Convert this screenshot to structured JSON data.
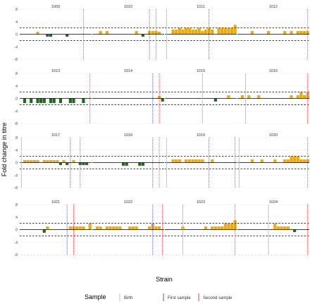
{
  "chart_data": {
    "type": "bar",
    "layout": "facet-grid 4x4, shared x and y axes",
    "xlabel": "Strain",
    "ylabel": "Fold change in titre",
    "ylim": [
      -8,
      8
    ],
    "yticks": [
      -8,
      -4,
      0,
      4,
      8
    ],
    "reference_lines": [
      {
        "y": 2,
        "style": "dashed",
        "color": "#000000"
      },
      {
        "y": -2,
        "style": "dashed",
        "color": "#000000"
      },
      {
        "y": 0,
        "style": "solid",
        "color": "#000000"
      }
    ],
    "positive_color": "#f2a900",
    "negative_color": "#1e6b1e",
    "legend": {
      "title": "Sample",
      "placement": "bottom",
      "entries": [
        {
          "label": "Birth",
          "color": "#bdbdbd"
        },
        {
          "label": "First sample",
          "color": "#4a56d8"
        },
        {
          "label": "Second sample",
          "color": "#e0474c"
        }
      ]
    },
    "n_strains": 22,
    "panels": [
      {
        "id": "1009",
        "values": [
          0,
          0,
          0,
          0,
          0,
          0.8,
          0,
          0,
          -0.8,
          -0.8,
          0,
          0,
          0,
          0,
          -0.8,
          0,
          0,
          0,
          0,
          0,
          0,
          0
        ],
        "birth": null,
        "first": null,
        "second": 19
      },
      {
        "id": "1010",
        "values": [
          0,
          0,
          1,
          0,
          1,
          0,
          0,
          0,
          0,
          0,
          0,
          0,
          0,
          1,
          0,
          -0.8,
          0,
          1,
          1,
          1,
          0.8,
          0
        ],
        "birth": null,
        "first": 17,
        "second": 19
      },
      {
        "id": "1011",
        "values": [
          0,
          0,
          1.5,
          1.5,
          2,
          1.5,
          2,
          2,
          1.5,
          1.5,
          2,
          1,
          1.5,
          2,
          1.5,
          0,
          2,
          2,
          2,
          2,
          2,
          3
        ],
        "birth": 0,
        "first": 13,
        "second": null
      },
      {
        "id": "1012",
        "values": [
          0,
          0,
          0,
          0,
          1,
          0,
          0,
          0,
          0,
          1,
          0,
          0,
          0,
          0,
          1,
          0,
          1,
          0,
          1,
          1,
          1,
          1
        ],
        "birth": null,
        "first": null,
        "second": 21
      },
      {
        "id": "1013",
        "values": [
          0,
          -1.5,
          0,
          -1.5,
          0,
          -1.5,
          -1.5,
          -1.5,
          0,
          -1.5,
          -1.5,
          0,
          -1.5,
          0,
          0,
          -1.5,
          -1.5,
          0,
          0,
          -1.5,
          0,
          0
        ],
        "birth": null,
        "first": null,
        "second": 21
      },
      {
        "id": "1014",
        "values": [
          0,
          0,
          0,
          0,
          0,
          0,
          0,
          0,
          0,
          0,
          0,
          0,
          0,
          0,
          0,
          0,
          0,
          0,
          0,
          0,
          0.8,
          -1
        ],
        "birth": null,
        "first": 18,
        "second": 20
      },
      {
        "id": "1015",
        "values": [
          0,
          0,
          0,
          0,
          0,
          0,
          0,
          0,
          0,
          0,
          0,
          0,
          0,
          0,
          0,
          -1,
          0,
          0,
          0,
          1,
          0,
          0
        ],
        "birth": 11,
        "first": null,
        "second": null
      },
      {
        "id": "1016",
        "values": [
          0,
          1,
          0,
          1,
          0,
          0,
          1,
          0,
          0,
          0,
          0,
          0,
          0,
          0,
          0,
          0,
          1,
          0,
          1,
          2,
          1,
          2
        ],
        "birth": 2,
        "first": null,
        "second": 21
      },
      {
        "id": "1017",
        "values": [
          0,
          0.8,
          0.8,
          0.8,
          0.8,
          0.8,
          0,
          0.8,
          0.8,
          0.8,
          0.8,
          0.8,
          -0.8,
          0.8,
          -0.8,
          0,
          0.8,
          0,
          -0.8,
          -0.8,
          -0.8,
          0
        ],
        "birth": 0,
        "first": 15,
        "second": 18
      },
      {
        "id": "1018",
        "values": [
          0,
          0,
          0,
          0,
          0,
          0,
          0,
          0,
          0,
          -1,
          -1,
          0,
          0,
          0,
          -1,
          -1,
          0,
          0,
          0,
          0,
          0,
          0
        ],
        "birth": null,
        "first": 18,
        "second": 20
      },
      {
        "id": "1019",
        "values": [
          0,
          0,
          1,
          1,
          1,
          0,
          1,
          1,
          1,
          1,
          1,
          1,
          0,
          0,
          1,
          0,
          0,
          0,
          0,
          0,
          0,
          0
        ],
        "birth": 0,
        "first": 13,
        "second": 21
      },
      {
        "id": "1020",
        "values": [
          0,
          0,
          0,
          0,
          1,
          0,
          0,
          1,
          0,
          0,
          0,
          1,
          0,
          0,
          1,
          1,
          2,
          2,
          2,
          1,
          1,
          1
        ],
        "birth": 0,
        "first": null,
        "second": 21
      },
      {
        "id": "1021",
        "values": [
          0,
          0,
          0,
          0,
          0,
          0,
          0,
          -1,
          1,
          0,
          0,
          0,
          0,
          0,
          0,
          1,
          1,
          1,
          1,
          1,
          0,
          2
        ],
        "birth": null,
        "first": 14,
        "second": 16
      },
      {
        "id": "1022",
        "values": [
          0,
          1,
          1,
          0,
          1,
          1,
          1,
          1,
          1,
          0,
          0,
          1,
          1,
          1,
          0,
          0,
          0,
          1,
          2,
          1,
          1,
          0
        ],
        "birth": null,
        "first": 18,
        "second": 21
      },
      {
        "id": "1023",
        "values": [
          0,
          0,
          0,
          0,
          0,
          1,
          0,
          0,
          0,
          0,
          0,
          0,
          1,
          0,
          1,
          1,
          1,
          1,
          2,
          2,
          2,
          3
        ],
        "birth": 5,
        "first": null,
        "second": 21
      },
      {
        "id": "1024",
        "values": [
          0,
          0,
          0,
          0,
          0,
          0,
          0,
          0,
          0,
          0,
          0,
          2,
          1,
          1,
          1,
          1,
          0,
          -0.8,
          0,
          0,
          0,
          0
        ],
        "birth": 9,
        "first": null,
        "second": 21
      }
    ]
  }
}
